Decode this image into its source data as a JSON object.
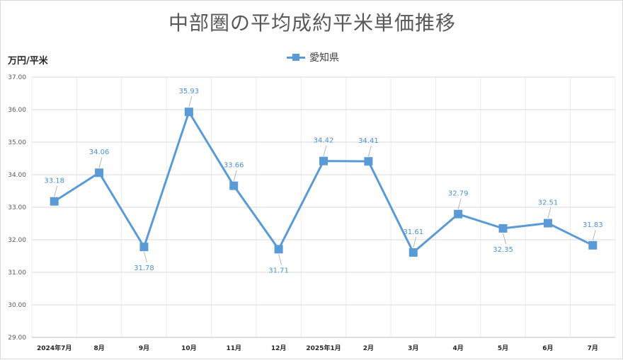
{
  "chart_data": {
    "type": "line",
    "title": "中部圏の平均成約平米単価推移",
    "ylabel": "万円/平米",
    "xlabel": "",
    "categories": [
      "2024年7月",
      "8月",
      "9月",
      "10月",
      "11月",
      "12月",
      "2025年1月",
      "2月",
      "3月",
      "4月",
      "5月",
      "6月",
      "7月"
    ],
    "series": [
      {
        "name": "愛知県",
        "values": [
          33.18,
          34.06,
          31.78,
          35.93,
          33.66,
          31.71,
          34.42,
          34.41,
          31.61,
          32.79,
          32.35,
          32.51,
          31.83
        ],
        "color": "#5b9bd5"
      }
    ],
    "ylim": [
      29,
      37
    ],
    "yticks": [
      "29.00",
      "30.00",
      "31.00",
      "32.00",
      "33.00",
      "34.00",
      "35.00",
      "36.00",
      "37.00"
    ],
    "label_position": [
      "above",
      "above",
      "below",
      "above",
      "above",
      "below",
      "above",
      "above",
      "above",
      "above",
      "below",
      "above",
      "above"
    ],
    "grid": true,
    "legend_position": "top"
  }
}
